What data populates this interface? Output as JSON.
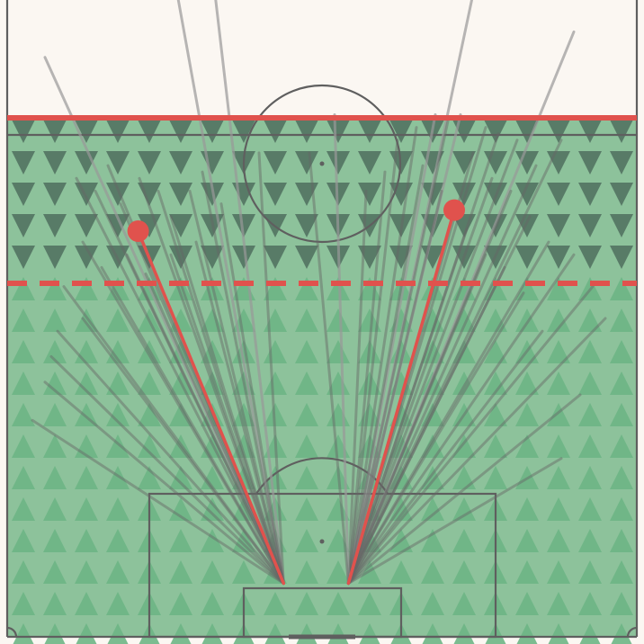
{
  "colors": {
    "background": "#fbf7f2",
    "pitch_fill": "#8dc29b",
    "triangle_up": "#6db585",
    "triangle_down": "#4f6f5e",
    "line": "#5f5f5f",
    "highlight": "#e0524d",
    "kick_line": "#666666"
  },
  "chart_data": {
    "type": "scatter",
    "description_kind": "goal-kick pass map on a vertical half pitch",
    "pitch": {
      "length_units": [
        0,
        100
      ],
      "width_units": [
        0,
        100
      ],
      "orientation": "vertical",
      "own_goal_at": "bottom"
    },
    "thresholds": {
      "halfway_line_solid_y": 81.5,
      "reference_dashed_y": 55.5
    },
    "origins": [
      {
        "name": "left",
        "x": 43.9,
        "y": 8.4
      },
      {
        "name": "right",
        "x": 54.2,
        "y": 8.4
      }
    ],
    "highlighted_passes": [
      {
        "origin": "left",
        "end_x": 20.8,
        "end_y": 63.7
      },
      {
        "origin": "right",
        "end_x": 71.0,
        "end_y": 67.0
      }
    ],
    "passes": [
      {
        "origin": "left",
        "end_x": 6.0,
        "end_y": 91.0
      },
      {
        "origin": "left",
        "end_x": 27.0,
        "end_y": 101.0
      },
      {
        "origin": "left",
        "end_x": 33.0,
        "end_y": 101.0
      },
      {
        "origin": "left",
        "end_x": 11.0,
        "end_y": 72.0
      },
      {
        "origin": "left",
        "end_x": 14.0,
        "end_y": 70.0
      },
      {
        "origin": "left",
        "end_x": 16.0,
        "end_y": 74.0
      },
      {
        "origin": "left",
        "end_x": 18.0,
        "end_y": 68.0
      },
      {
        "origin": "left",
        "end_x": 21.0,
        "end_y": 72.0
      },
      {
        "origin": "left",
        "end_x": 24.0,
        "end_y": 70.0
      },
      {
        "origin": "left",
        "end_x": 26.0,
        "end_y": 66.0
      },
      {
        "origin": "left",
        "end_x": 29.0,
        "end_y": 70.0
      },
      {
        "origin": "left",
        "end_x": 31.0,
        "end_y": 73.0
      },
      {
        "origin": "left",
        "end_x": 34.0,
        "end_y": 68.0
      },
      {
        "origin": "left",
        "end_x": 40.0,
        "end_y": 76.0
      },
      {
        "origin": "left",
        "end_x": 8.0,
        "end_y": 48.0
      },
      {
        "origin": "left",
        "end_x": 4.0,
        "end_y": 34.0
      },
      {
        "origin": "left",
        "end_x": 6.0,
        "end_y": 40.0
      },
      {
        "origin": "left",
        "end_x": 9.0,
        "end_y": 55.0
      },
      {
        "origin": "left",
        "end_x": 12.0,
        "end_y": 62.0
      },
      {
        "origin": "left",
        "end_x": 15.0,
        "end_y": 58.0
      },
      {
        "origin": "left",
        "end_x": 19.0,
        "end_y": 60.0
      },
      {
        "origin": "left",
        "end_x": 22.0,
        "end_y": 57.0
      },
      {
        "origin": "left",
        "end_x": 26.0,
        "end_y": 60.0
      },
      {
        "origin": "left",
        "end_x": 30.0,
        "end_y": 62.0
      },
      {
        "origin": "left",
        "end_x": 7.0,
        "end_y": 44.0
      },
      {
        "origin": "left",
        "end_x": 12.0,
        "end_y": 50.0
      },
      {
        "origin": "right",
        "end_x": 74.0,
        "end_y": 101.0
      },
      {
        "origin": "right",
        "end_x": 90.0,
        "end_y": 95.0
      },
      {
        "origin": "right",
        "end_x": 65.0,
        "end_y": 80.0
      },
      {
        "origin": "right",
        "end_x": 68.0,
        "end_y": 82.0
      },
      {
        "origin": "right",
        "end_x": 70.0,
        "end_y": 81.0
      },
      {
        "origin": "right",
        "end_x": 72.0,
        "end_y": 82.0
      },
      {
        "origin": "right",
        "end_x": 76.0,
        "end_y": 80.0
      },
      {
        "origin": "right",
        "end_x": 78.0,
        "end_y": 79.0
      },
      {
        "origin": "right",
        "end_x": 81.0,
        "end_y": 78.0
      },
      {
        "origin": "right",
        "end_x": 84.0,
        "end_y": 74.0
      },
      {
        "origin": "right",
        "end_x": 88.0,
        "end_y": 78.0
      },
      {
        "origin": "right",
        "end_x": 74.0,
        "end_y": 76.0
      },
      {
        "origin": "right",
        "end_x": 77.0,
        "end_y": 72.0
      },
      {
        "origin": "right",
        "end_x": 80.0,
        "end_y": 70.0
      },
      {
        "origin": "right",
        "end_x": 83.0,
        "end_y": 66.0
      },
      {
        "origin": "right",
        "end_x": 86.0,
        "end_y": 62.0
      },
      {
        "origin": "right",
        "end_x": 90.0,
        "end_y": 60.0
      },
      {
        "origin": "right",
        "end_x": 93.0,
        "end_y": 55.0
      },
      {
        "origin": "right",
        "end_x": 95.0,
        "end_y": 50.0
      },
      {
        "origin": "right",
        "end_x": 91.0,
        "end_y": 38.0
      },
      {
        "origin": "right",
        "end_x": 88.0,
        "end_y": 28.0
      },
      {
        "origin": "right",
        "end_x": 66.0,
        "end_y": 74.0
      },
      {
        "origin": "right",
        "end_x": 69.0,
        "end_y": 70.0
      },
      {
        "origin": "right",
        "end_x": 73.0,
        "end_y": 64.0
      },
      {
        "origin": "right",
        "end_x": 76.0,
        "end_y": 60.0
      },
      {
        "origin": "right",
        "end_x": 79.0,
        "end_y": 58.0
      },
      {
        "origin": "right",
        "end_x": 82.0,
        "end_y": 54.0
      },
      {
        "origin": "right",
        "end_x": 85.0,
        "end_y": 48.0
      },
      {
        "origin": "right",
        "end_x": 62.0,
        "end_y": 78.0
      },
      {
        "origin": "right",
        "end_x": 60.0,
        "end_y": 73.0
      },
      {
        "origin": "right",
        "end_x": 57.0,
        "end_y": 70.0
      },
      {
        "origin": "right",
        "end_x": 52.0,
        "end_y": 82.0
      },
      {
        "origin": "right",
        "end_x": 48.0,
        "end_y": 76.0
      }
    ]
  }
}
